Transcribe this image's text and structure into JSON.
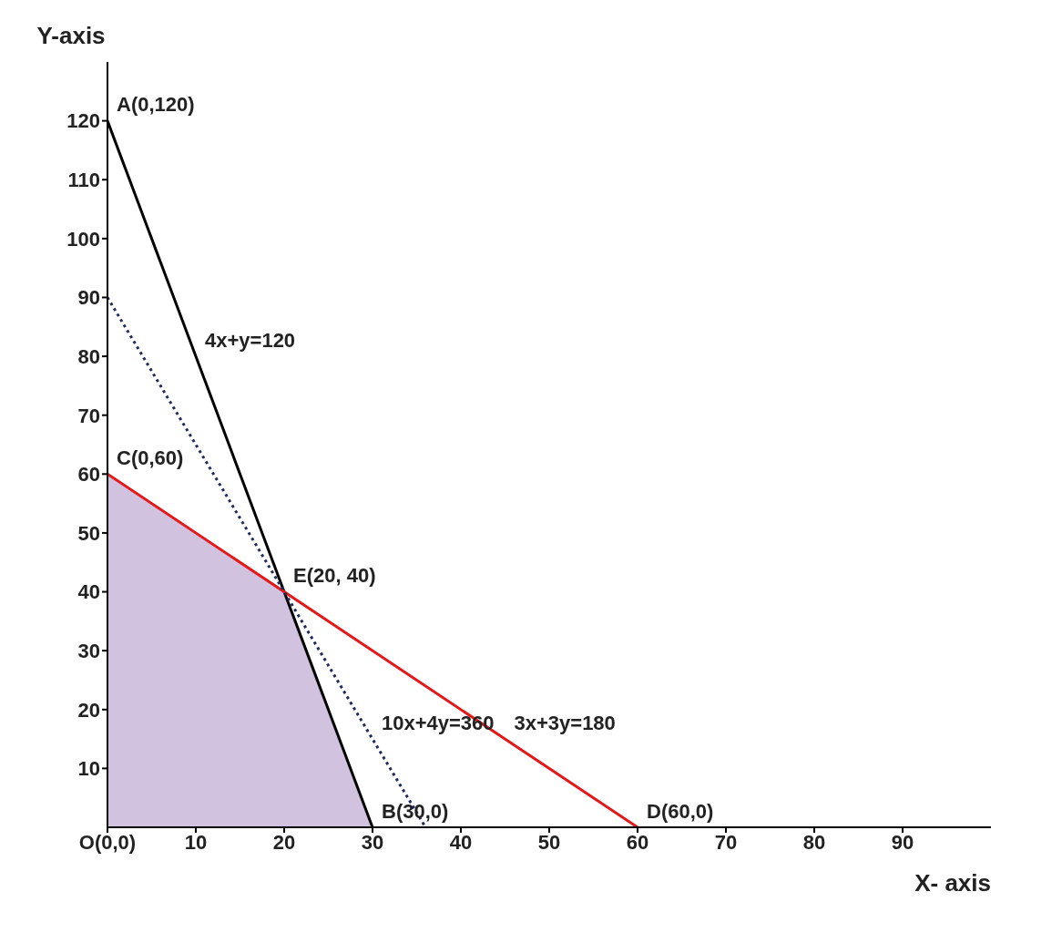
{
  "chart_data": {
    "type": "line",
    "xlabel": "X- axis",
    "ylabel": "Y-axis",
    "xlim": [
      0,
      100
    ],
    "ylim": [
      0,
      130
    ],
    "xticks": [
      {
        "value": 0,
        "label": "O(0,0)"
      },
      10,
      20,
      30,
      40,
      50,
      60,
      70,
      80,
      90
    ],
    "yticks": [
      10,
      20,
      30,
      40,
      50,
      60,
      70,
      80,
      90,
      100,
      110,
      120
    ],
    "marker": "none",
    "series": [
      {
        "type": "area",
        "color": "#d1c2e0",
        "x": [
          0,
          0,
          20,
          30
        ],
        "values": [
          0,
          60,
          40,
          0
        ]
      },
      {
        "color": "#000000",
        "x": [
          0,
          30
        ],
        "values": [
          120,
          0
        ],
        "line_style": "solid"
      },
      {
        "color": "#e31a1c",
        "x": [
          0,
          60
        ],
        "values": [
          60,
          0
        ],
        "line_style": "solid"
      },
      {
        "color": "#1f2a5c",
        "x": [
          0,
          36
        ],
        "values": [
          90,
          0
        ],
        "line_style": "dotted"
      }
    ],
    "annotations": [
      {
        "text": "A(0,120)",
        "x": 0,
        "y": 120
      },
      {
        "text": "C(0,60)",
        "x": 0,
        "y": 60
      },
      {
        "text": "E(20, 40)",
        "x": 20,
        "y": 40
      },
      {
        "text": "B(30,0)",
        "x": 30,
        "y": 0
      },
      {
        "text": "D(60,0)",
        "x": 60,
        "y": 0
      },
      {
        "text": "4x+y=120",
        "x": 10,
        "y": 80
      },
      {
        "text": "3x+3y=180",
        "x": 45,
        "y": 15
      },
      {
        "text": "10x+4y=360",
        "x": 30,
        "y": 15
      }
    ]
  }
}
